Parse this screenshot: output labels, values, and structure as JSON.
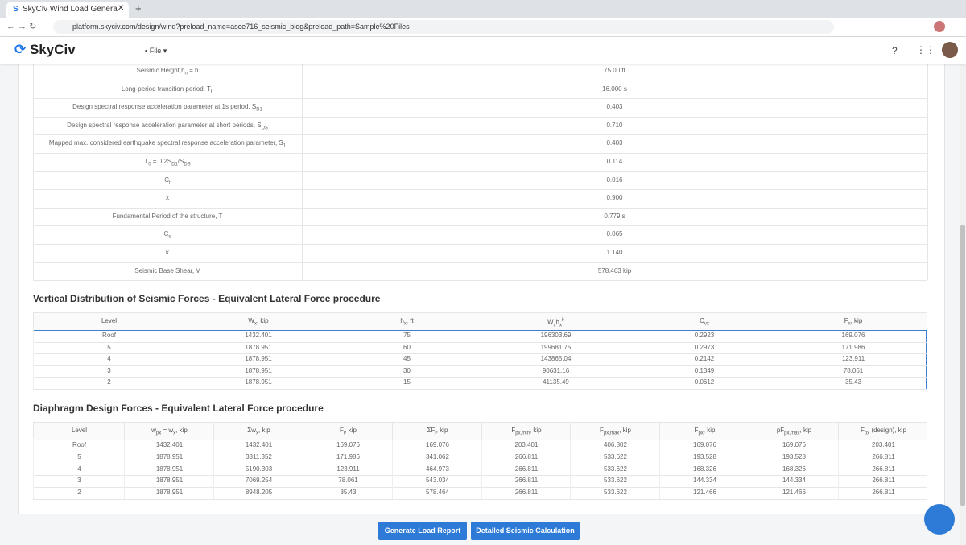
{
  "browser": {
    "tab_title": "SkyCiv Wind Load Genera",
    "url": "platform.skyciv.com/design/wind?preload_name=asce716_seismic_blog&preload_path=Sample%20Files"
  },
  "app": {
    "logo": "SkyCiv",
    "menu": "File"
  },
  "parameters": {
    "rows": [
      {
        "label": [
          "Seismic Height,h",
          {
            "sub": "n"
          },
          " = h"
        ],
        "value": "75.00 ft"
      },
      {
        "label": [
          "Long-period transition period, T",
          {
            "sub": "L"
          }
        ],
        "value": "16.000 s"
      },
      {
        "label": [
          "Design spectral response acceleration parameter at 1s period, S",
          {
            "sub": "D1"
          }
        ],
        "value": "0.403"
      },
      {
        "label": [
          "Design spectral response acceleration parameter at short periods, S",
          {
            "sub": "DS"
          }
        ],
        "value": "0.710"
      },
      {
        "label": [
          "Mapped max. considered earthquake spectral response acceleration parameter, S",
          {
            "sub": "1"
          }
        ],
        "value": "0.403"
      },
      {
        "label": [
          "T",
          {
            "sub": "0"
          },
          " = 0.2S",
          {
            "sub": "D1"
          },
          "/S",
          {
            "sub": "DS"
          }
        ],
        "value": "0.114"
      },
      {
        "label": [
          "C",
          {
            "sub": "t"
          }
        ],
        "value": "0.016"
      },
      {
        "label": [
          "x"
        ],
        "value": "0.900"
      },
      {
        "label": [
          "Fundamental Period of the structure, T"
        ],
        "value": "0.779 s"
      },
      {
        "label": [
          "C",
          {
            "sub": "s"
          }
        ],
        "value": "0.065"
      },
      {
        "label": [
          "k"
        ],
        "value": "1.140"
      },
      {
        "label": [
          "Seismic Base Shear, V"
        ],
        "value": "578.463 kip"
      }
    ]
  },
  "vertical_distribution": {
    "title": "Vertical Distribution of Seismic Forces - Equivalent Lateral Force procedure",
    "headers": [
      [
        "Level"
      ],
      [
        "W",
        {
          "sub": "x"
        },
        ", kip"
      ],
      [
        "h",
        {
          "sub": "x"
        },
        ", ft"
      ],
      [
        "W",
        {
          "sub": "x"
        },
        "h",
        {
          "sub": "x"
        },
        {
          "sup": "k"
        }
      ],
      [
        "C",
        {
          "sub": "vx"
        }
      ],
      [
        "F",
        {
          "sub": "x"
        },
        ", kip"
      ]
    ],
    "rows": [
      [
        "Roof",
        "1432.401",
        "75",
        "196303.69",
        "0.2923",
        "169.076"
      ],
      [
        "5",
        "1878.951",
        "60",
        "199681.75",
        "0.2973",
        "171.986"
      ],
      [
        "4",
        "1878.951",
        "45",
        "143865.04",
        "0.2142",
        "123.911"
      ],
      [
        "3",
        "1878.951",
        "30",
        "90631.16",
        "0.1349",
        "78.061"
      ],
      [
        "2",
        "1878.951",
        "15",
        "41135.49",
        "0.0612",
        "35.43"
      ]
    ]
  },
  "diaphragm": {
    "title": "Diaphragm Design Forces - Equivalent Lateral Force procedure",
    "headers": [
      [
        "Level"
      ],
      [
        "w",
        {
          "sub": "px"
        },
        " = w",
        {
          "sub": "x"
        },
        ", kip"
      ],
      [
        "Σw",
        {
          "sub": "x"
        },
        ", kip"
      ],
      [
        "F",
        {
          "sub": "i"
        },
        ", kip"
      ],
      [
        "ΣF",
        {
          "sub": "i"
        },
        ", kip"
      ],
      [
        "F",
        {
          "sub": "px,min"
        },
        ", kip"
      ],
      [
        "F",
        {
          "sub": "px,max"
        },
        ", kip"
      ],
      [
        "F",
        {
          "sub": "px"
        },
        ", kip"
      ],
      [
        "pF",
        {
          "sub": "px,max"
        },
        ", kip"
      ],
      [
        "F",
        {
          "sub": "px"
        },
        " (design), kip"
      ]
    ],
    "rows": [
      [
        "Roof",
        "1432.401",
        "1432.401",
        "169.076",
        "169.076",
        "203.401",
        "406.802",
        "169.076",
        "169.076",
        "203.401"
      ],
      [
        "5",
        "1878.951",
        "3311.352",
        "171.986",
        "341.062",
        "266.811",
        "533.622",
        "193.528",
        "193.528",
        "266.811"
      ],
      [
        "4",
        "1878.951",
        "5190.303",
        "123.911",
        "464.973",
        "266.811",
        "533.622",
        "168.326",
        "168.326",
        "266.811"
      ],
      [
        "3",
        "1878.951",
        "7069.254",
        "78.061",
        "543.034",
        "266.811",
        "533.622",
        "144.334",
        "144.334",
        "266.811"
      ],
      [
        "2",
        "1878.951",
        "8948.205",
        "35.43",
        "578.464",
        "266.811",
        "533.622",
        "121.466",
        "121.466",
        "266.811"
      ]
    ]
  },
  "buttons": [
    "Generate Load Report",
    "Detailed Seismic Calculation"
  ]
}
